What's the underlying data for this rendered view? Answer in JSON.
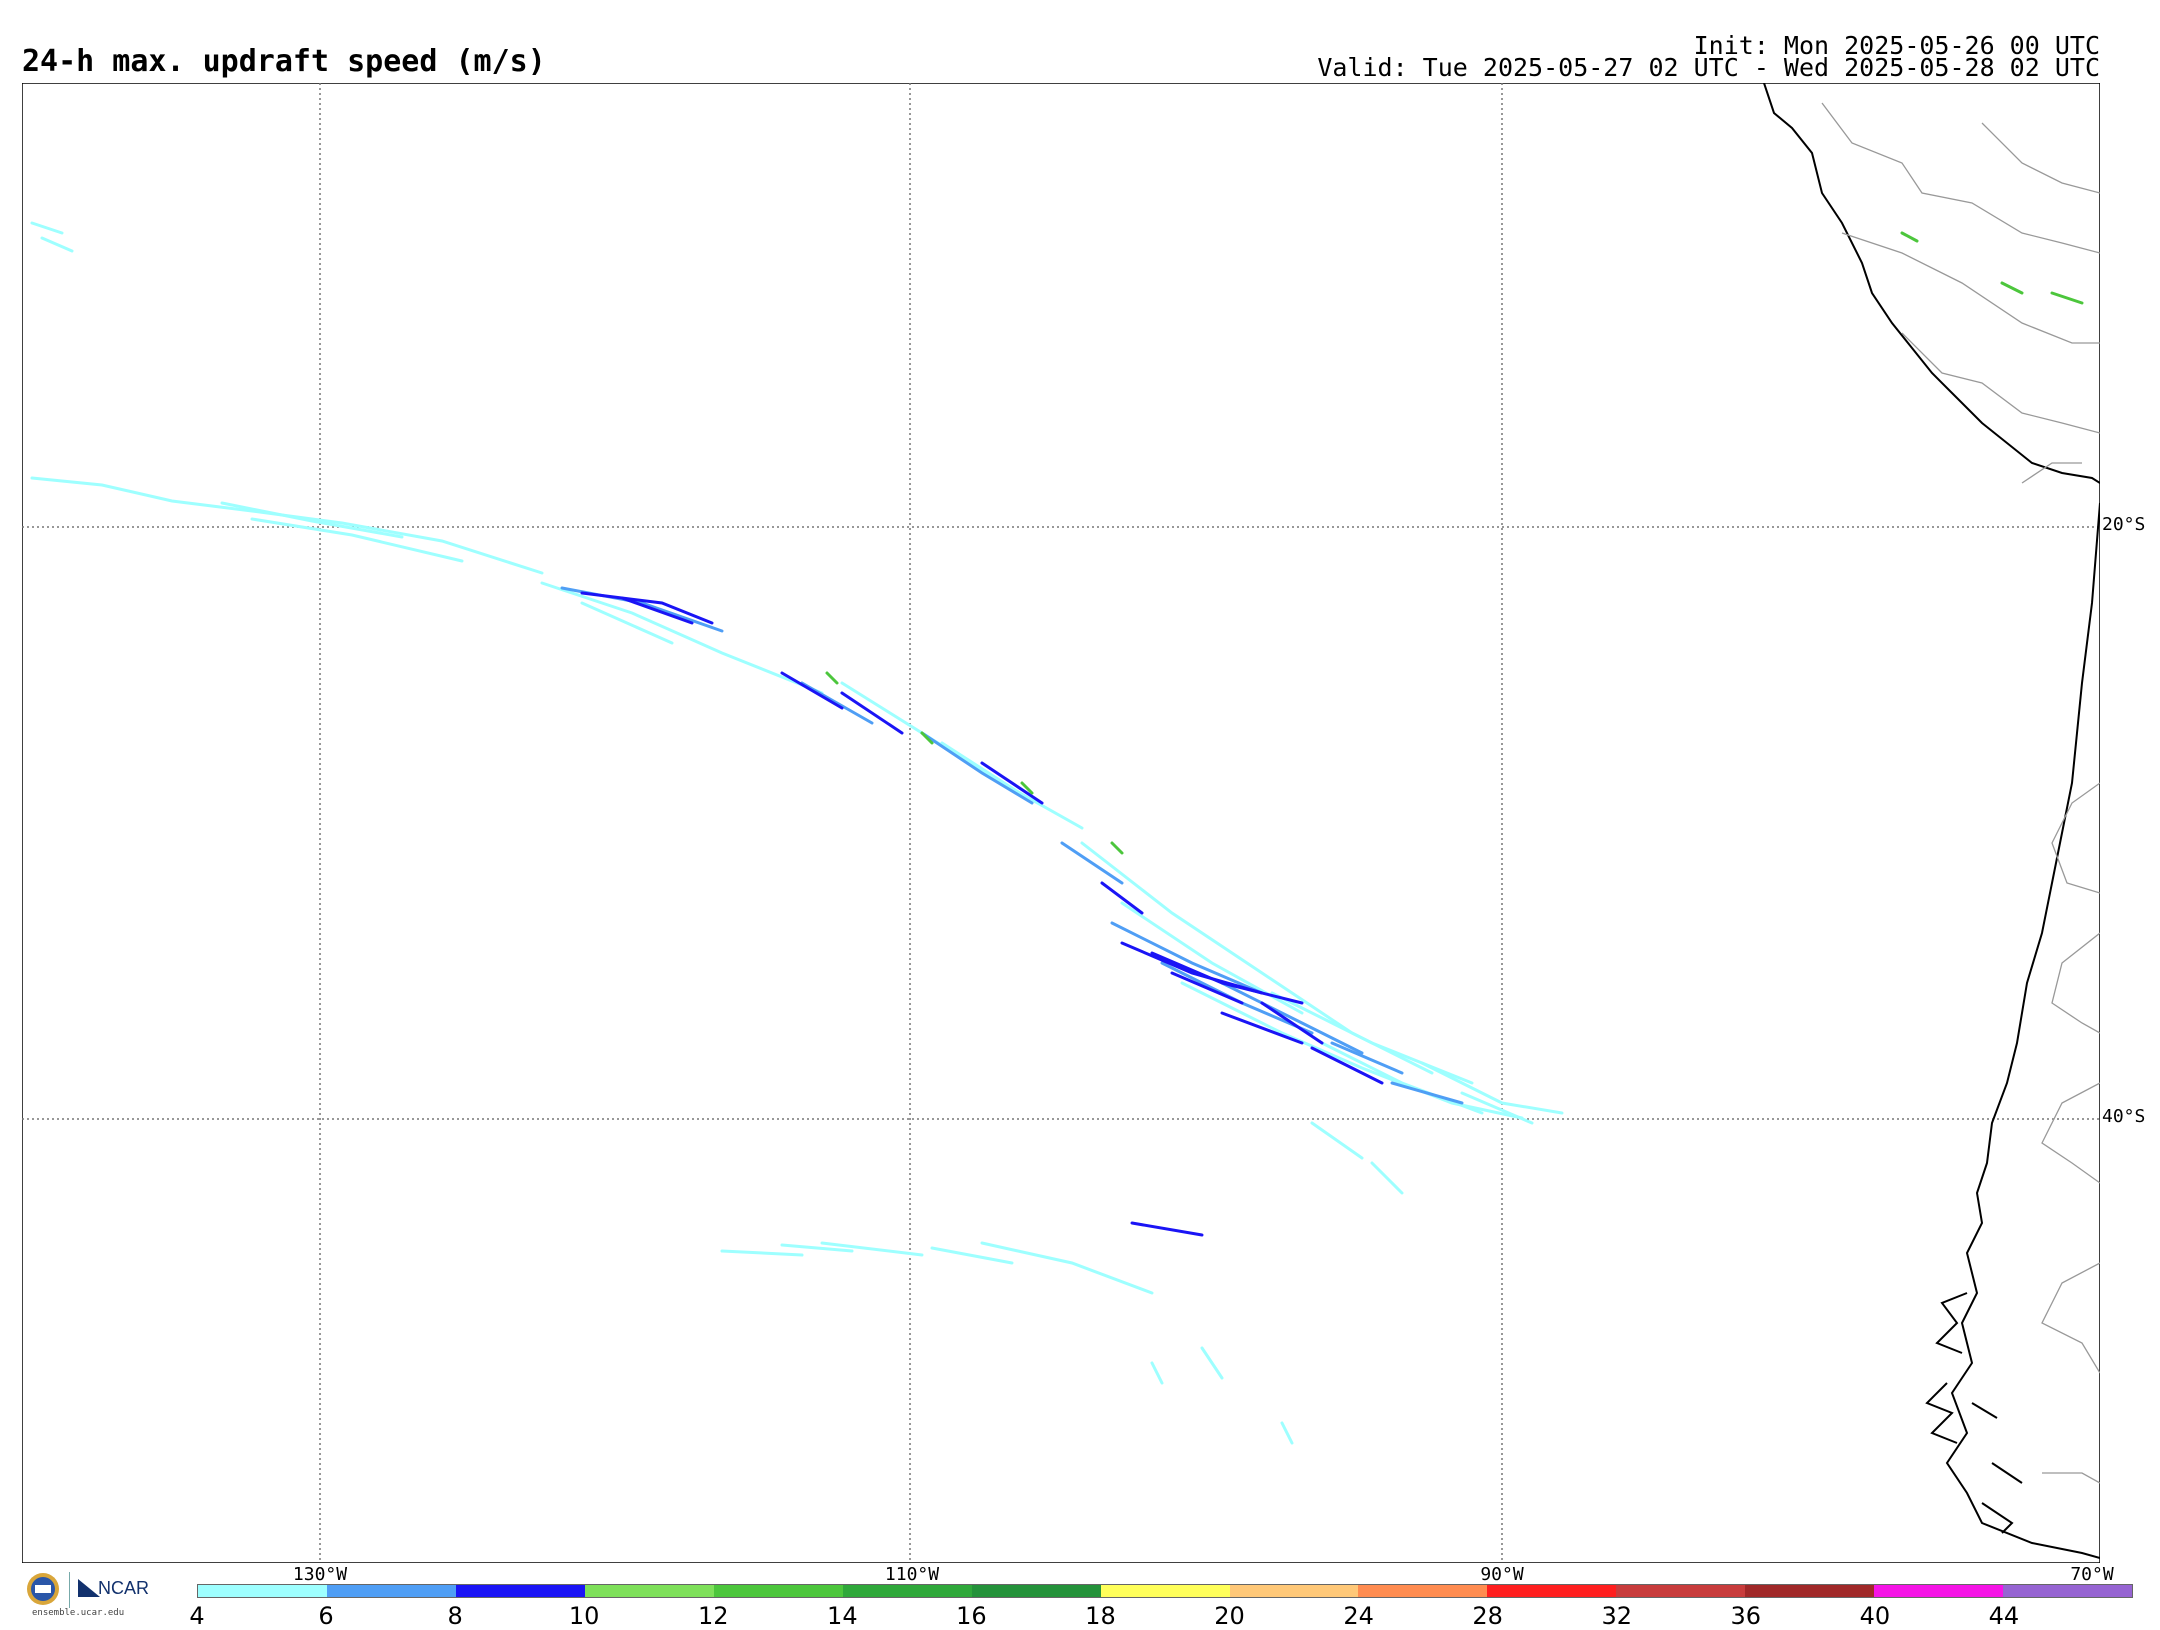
{
  "header": {
    "title": "24-h max. updraft speed (m/s)",
    "init": "Init: Mon 2025-05-26 00 UTC",
    "valid": "Valid: Tue 2025-05-27 02 UTC - Wed 2025-05-28 02 UTC"
  },
  "map": {
    "lat_labels": [
      "20°S",
      "40°S"
    ],
    "lon_labels": [
      "130°W",
      "110°W",
      "90°W",
      "70°W"
    ]
  },
  "colorbar": {
    "ticks": [
      "4",
      "6",
      "8",
      "10",
      "12",
      "14",
      "16",
      "18",
      "20",
      "24",
      "28",
      "32",
      "36",
      "40",
      "44"
    ],
    "colors": [
      "#9effff",
      "#4f9ef5",
      "#1a14f5",
      "#7ee05a",
      "#4cc63c",
      "#2fa83a",
      "#24923a",
      "#ffff5a",
      "#ffc878",
      "#ff8c50",
      "#ff1e1e",
      "#c83c3c",
      "#a02828",
      "#f514e6",
      "#9664d2"
    ]
  },
  "logos": {
    "nsf_icon": "nsf-logo-icon",
    "ncar_text": "NCAR",
    "website": "ensemble.ucar.edu"
  }
}
